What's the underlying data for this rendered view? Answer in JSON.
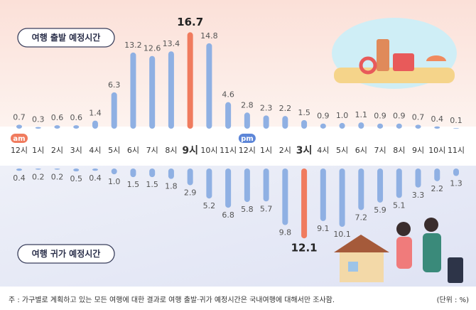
{
  "chart_data": {
    "type": "diverging-bar",
    "categories": [
      "12시",
      "1시",
      "2시",
      "3시",
      "4시",
      "5시",
      "6시",
      "7시",
      "8시",
      "9시",
      "10시",
      "11시",
      "12시",
      "1시",
      "2시",
      "3시",
      "4시",
      "5시",
      "6시",
      "7시",
      "8시",
      "9시",
      "10시",
      "11시"
    ],
    "am_label": "am",
    "pm_label": "pm",
    "series": [
      {
        "name": "여행 출발 예정시간",
        "color": "#8fb0e3",
        "highlight": 9,
        "highlight_color": "#f07b5e",
        "values": [
          0.7,
          0.3,
          0.6,
          0.6,
          1.4,
          6.3,
          13.2,
          12.6,
          13.4,
          16.7,
          14.8,
          4.6,
          2.8,
          2.3,
          2.2,
          1.5,
          0.9,
          1.0,
          1.1,
          0.9,
          0.9,
          0.7,
          0.4,
          0.1
        ],
        "value_labels": [
          "0.7",
          "0.3",
          "0.6",
          "0.6",
          "1.4",
          "6.3",
          "13.2",
          "12.6",
          "13.4",
          "16.7",
          "14.8",
          "4.6",
          "2.8",
          "2.3",
          "2.2",
          "1.5",
          "0.9",
          "1.0",
          "1.1",
          "0.9",
          "0.9",
          "0.7",
          "0.4",
          "0.1"
        ]
      },
      {
        "name": "여행 귀가 예정시간",
        "color": "#8fb0e3",
        "highlight": 15,
        "highlight_color": "#f07b5e",
        "values": [
          0.4,
          0.2,
          0.2,
          0.5,
          0.4,
          1.0,
          1.5,
          1.5,
          1.8,
          2.9,
          5.2,
          6.8,
          5.8,
          5.7,
          9.8,
          12.1,
          9.1,
          10.1,
          7.2,
          5.9,
          5.1,
          3.3,
          2.2,
          1.3
        ],
        "value_labels": [
          "0.4",
          "0.2",
          "0.2",
          "0.5",
          "0.4",
          "1.0",
          "1.5",
          "1.5",
          "1.8",
          "2.9",
          "5.2",
          "6.8",
          "5.8",
          "5.7",
          "9.8",
          "12.1",
          "9.1",
          "10.1",
          "7.2",
          "5.9",
          "5.1",
          "3.3",
          "2.2",
          "1.3"
        ]
      }
    ],
    "ylim": [
      0,
      17
    ],
    "footnote": "주 : 가구별로 계획하고 있는 모든 여행에 대한 결과로 여행 출발·귀가 예정시간은 국내여행에 대해서만 조사함.",
    "unit": "(단위 : %)"
  }
}
